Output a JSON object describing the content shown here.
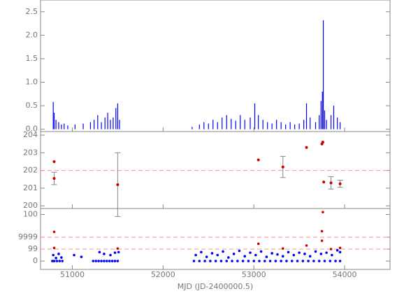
{
  "chart_data": [
    {
      "type": "bar",
      "color": "#0000ff",
      "ylim": [
        -0.05,
        2.75
      ],
      "yticks": [
        {
          "value": 0,
          "label": "0.0"
        },
        0.5,
        {
          "value": 1,
          "label": "1.0"
        },
        1.5,
        {
          "value": 2,
          "label": "2.0"
        },
        2.5
      ],
      "x": [
        50790,
        50800,
        50820,
        50850,
        50880,
        50910,
        50950,
        51030,
        51120,
        51200,
        51240,
        51280,
        51320,
        51360,
        51390,
        51420,
        51450,
        51480,
        51500,
        51520,
        52320,
        52400,
        52450,
        52500,
        52550,
        52600,
        52650,
        52700,
        52750,
        52800,
        52850,
        52900,
        52960,
        53010,
        53050,
        53100,
        53150,
        53200,
        53250,
        53300,
        53350,
        53400,
        53450,
        53500,
        53550,
        53580,
        53620,
        53680,
        53720,
        53740,
        53755,
        53765,
        53780,
        53800,
        53850,
        53880,
        53920,
        53950
      ],
      "values": [
        0.58,
        0.35,
        0.2,
        0.15,
        0.1,
        0.12,
        0.08,
        0.1,
        0.12,
        0.15,
        0.2,
        0.3,
        0.15,
        0.25,
        0.35,
        0.2,
        0.25,
        0.45,
        0.55,
        0.2,
        0.05,
        0.1,
        0.15,
        0.12,
        0.2,
        0.15,
        0.25,
        0.3,
        0.22,
        0.18,
        0.3,
        0.2,
        0.25,
        0.55,
        0.3,
        0.2,
        0.15,
        0.12,
        0.2,
        0.15,
        0.1,
        0.15,
        0.1,
        0.12,
        0.2,
        0.55,
        0.25,
        0.15,
        0.3,
        0.6,
        0.8,
        2.32,
        0.4,
        0.2,
        0.3,
        0.5,
        0.25,
        0.15
      ]
    },
    {
      "type": "errorbar",
      "color": "#cc0000",
      "error_color": "#888888",
      "ylim": [
        199.85,
        204.2
      ],
      "yticks": [
        200,
        201,
        202,
        203,
        204
      ],
      "hlines": [
        202
      ],
      "x": [
        50800,
        50800,
        51500,
        53050,
        53320,
        53580,
        53750,
        53760,
        53770,
        53850,
        53950
      ],
      "values": [
        202.5,
        201.55,
        201.2,
        202.6,
        202.2,
        203.3,
        203.5,
        203.6,
        201.35,
        201.3,
        201.25
      ],
      "errors": [
        null,
        0.35,
        1.8,
        null,
        0.6,
        null,
        null,
        null,
        null,
        0.35,
        0.2
      ]
    },
    {
      "type": "scatter",
      "ylim": [
        -1.4,
        8.8
      ],
      "yticks": [
        0,
        {
          "value": 2,
          "label": "99"
        },
        {
          "value": 4,
          "label": "9999"
        },
        {
          "value": 7.8,
          "label": "100"
        }
      ],
      "hlines": [
        2,
        4
      ],
      "xlim": [
        50650,
        54500
      ],
      "xticks": [
        51000,
        52000,
        53000,
        54000
      ],
      "xlabel": "MJD (JD-2400000.5)",
      "series": [
        {
          "color": "#0000ff",
          "x": [
            50780,
            50800,
            50830,
            50860,
            50890,
            51230,
            51260,
            51290,
            51320,
            51350,
            51380,
            51410,
            51440,
            51470,
            51500,
            52340,
            52400,
            52460,
            52520,
            52580,
            52640,
            52700,
            52760,
            52820,
            52880,
            52940,
            53000,
            53060,
            53120,
            53180,
            53240,
            53300,
            53360,
            53420,
            53480,
            53540,
            53600,
            53660,
            53720,
            53780,
            53840,
            53900,
            53950,
            50790,
            50820,
            50850,
            50880,
            51020,
            51100,
            51300,
            51350,
            51420,
            51470,
            51510,
            52360,
            52420,
            52480,
            52540,
            52600,
            52660,
            52720,
            52780,
            52840,
            52900,
            52960,
            53020,
            53080,
            53140,
            53200,
            53260,
            53320,
            53380,
            53440,
            53500,
            53560,
            53620,
            53680,
            53740,
            53800,
            53860,
            53920,
            53950
          ],
          "values": [
            0,
            0,
            0,
            0,
            0,
            0,
            0,
            0,
            0,
            0,
            0,
            0,
            0,
            0,
            0,
            0,
            0,
            0,
            0,
            0,
            0,
            0,
            0,
            0,
            0,
            0,
            0,
            0,
            0,
            0,
            0,
            0,
            0,
            0,
            0,
            0,
            0,
            0,
            0,
            0,
            0,
            0,
            0,
            1.0,
            0.5,
            1.2,
            0.6,
            1.0,
            0.7,
            1.5,
            1.2,
            1.0,
            1.4,
            1.5,
            1.0,
            1.5,
            0.7,
            1.3,
            1.0,
            1.6,
            0.6,
            1.2,
            1.7,
            0.8,
            1.4,
            1.0,
            1.6,
            0.7,
            1.3,
            1.1,
            0.8,
            1.5,
            1.0,
            1.4,
            1.2,
            0.8,
            1.6,
            1.2,
            1.4,
            1.0,
            1.8,
            1.5
          ]
        },
        {
          "color": "#cc0000",
          "x": [
            50800,
            50800,
            51500,
            53050,
            53320,
            53580,
            53750,
            53760,
            53750,
            53850,
            53950
          ],
          "values": [
            4.9,
            2.2,
            2.1,
            2.9,
            2.1,
            2.6,
            5.0,
            8.2,
            3.4,
            2.0,
            2.2
          ]
        }
      ]
    }
  ]
}
